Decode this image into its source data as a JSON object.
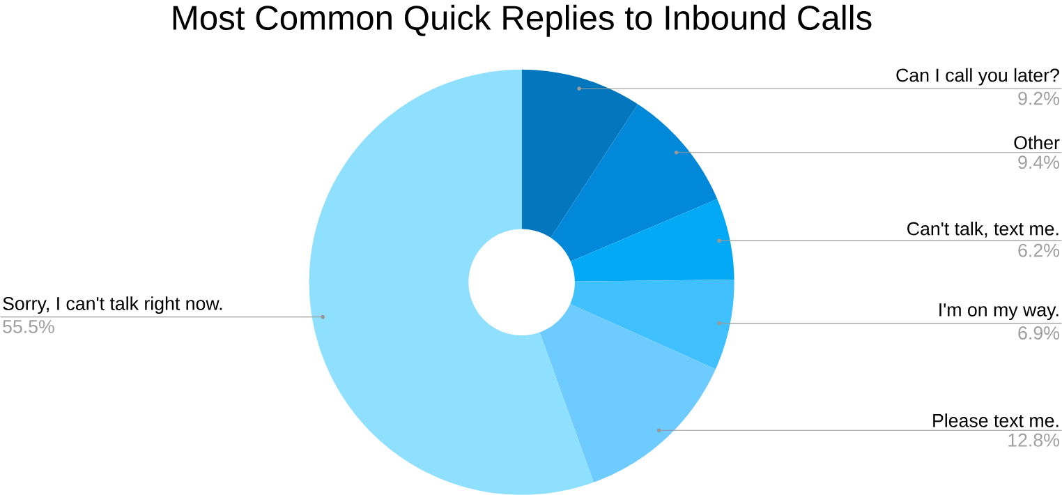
{
  "chart_data": {
    "type": "donut",
    "title": "Most Common Quick Replies to Inbound Calls",
    "categories": [
      "Can I call you later?",
      "Other",
      "Can't talk, text me.",
      "I'm on my way.",
      "Please text me.",
      "Sorry, I can't talk right now."
    ],
    "values": [
      9.2,
      9.4,
      6.2,
      6.9,
      12.8,
      55.5
    ],
    "colors": [
      "#0277bd",
      "#0288d9",
      "#03a9f4",
      "#40c0fc",
      "#6ecbff",
      "#8fdfff"
    ],
    "value_labels": [
      "9.2%",
      "9.4%",
      "6.2%",
      "6.9%",
      "12.8%",
      "55.5%"
    ]
  }
}
